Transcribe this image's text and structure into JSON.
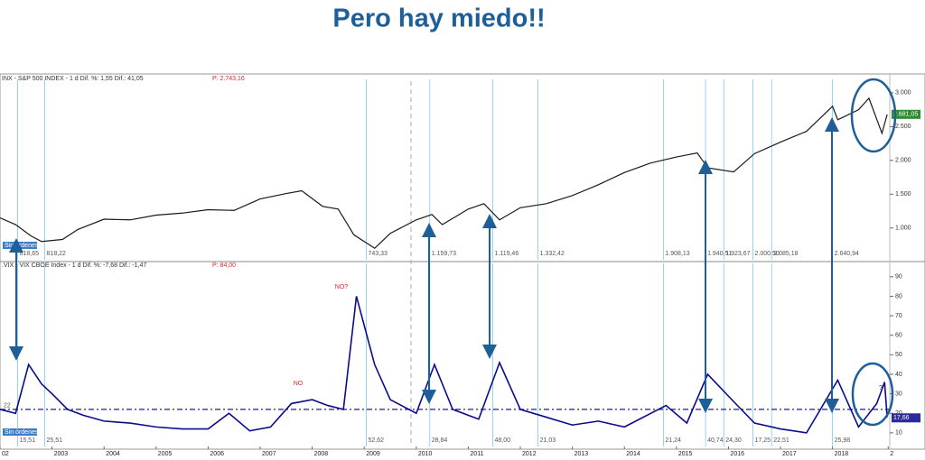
{
  "title": "Pero hay miedo!!",
  "chart_data": [
    {
      "type": "line",
      "header": "INX - S&P 500 INDEX - 1 d  Dif. %: 1,55  Dif.: 41,05",
      "price": "P: 2.743,16",
      "order_status": "Sin órdenes",
      "x": [
        2002.0,
        2002.3,
        2002.6,
        2002.8,
        2003.2,
        2003.5,
        2004.0,
        2004.5,
        2005.0,
        2005.5,
        2006.0,
        2006.5,
        2007.0,
        2007.5,
        2007.8,
        2008.2,
        2008.5,
        2008.8,
        2009.2,
        2009.5,
        2010.0,
        2010.3,
        2010.5,
        2011.0,
        2011.3,
        2011.6,
        2012.0,
        2012.5,
        2013.0,
        2013.5,
        2014.0,
        2014.5,
        2015.0,
        2015.4,
        2015.6,
        2016.1,
        2016.5,
        2017.0,
        2017.5,
        2018.0,
        2018.1,
        2018.5,
        2018.7,
        2018.95,
        2019.05
      ],
      "series": [
        {
          "name": "S&P 500",
          "color": "#1a1a1a",
          "values": [
            1150,
            1050,
            880,
            800,
            830,
            980,
            1130,
            1120,
            1190,
            1220,
            1270,
            1260,
            1430,
            1510,
            1550,
            1320,
            1280,
            900,
            700,
            920,
            1120,
            1200,
            1050,
            1280,
            1360,
            1120,
            1300,
            1360,
            1480,
            1640,
            1820,
            1960,
            2050,
            2110,
            1890,
            1830,
            2100,
            2270,
            2430,
            2800,
            2600,
            2750,
            2920,
            2400,
            2680
          ]
        }
      ],
      "xlim": [
        2002,
        2019.1
      ],
      "ylim": [
        530,
        3145
      ],
      "yticks": [
        {
          "value": 1000,
          "label": "1.000"
        },
        {
          "value": 1500,
          "label": "1.500"
        },
        {
          "value": 2000,
          "label": "2.000"
        },
        {
          "value": 2500,
          "label": "2.500"
        },
        {
          "value": 3000,
          "label": "3.000"
        }
      ],
      "current": {
        "value": 2681.05,
        "label": "2.681,05"
      },
      "annotations": [
        {
          "x": 2002.34,
          "label": "818,65"
        },
        {
          "x": 2002.86,
          "label": "818,22"
        },
        {
          "x": 2009.04,
          "label": "743,33"
        },
        {
          "x": 2010.26,
          "label": "1.159,73"
        },
        {
          "x": 2011.47,
          "label": "1.119,46"
        },
        {
          "x": 2012.34,
          "label": "1.332,42"
        },
        {
          "x": 2014.75,
          "label": "1.908,13"
        },
        {
          "x": 2015.56,
          "label": "1.940,51"
        },
        {
          "x": 2015.91,
          "label": "1.923,67"
        },
        {
          "x": 2016.47,
          "label": "2.000,50"
        },
        {
          "x": 2016.83,
          "label": "2.085,18"
        },
        {
          "x": 2018.0,
          "label": "2.640,94"
        }
      ]
    },
    {
      "type": "line",
      "header": ".VIX - VIX CBOE Index - 1 d  Dif. %: -7,68  Dif.: -1,47",
      "price": "P: 84,00",
      "order_status": "Sin órdenes",
      "x": [
        2002.0,
        2002.3,
        2002.55,
        2002.8,
        2003.0,
        2003.3,
        2003.6,
        2004.0,
        2004.5,
        2005.0,
        2005.5,
        2006.0,
        2006.4,
        2006.8,
        2007.2,
        2007.6,
        2008.0,
        2008.3,
        2008.6,
        2008.85,
        2009.2,
        2009.5,
        2010.0,
        2010.35,
        2010.7,
        2011.2,
        2011.6,
        2012.0,
        2012.5,
        2013.0,
        2013.5,
        2014.0,
        2014.8,
        2015.2,
        2015.6,
        2016.1,
        2016.5,
        2017.0,
        2017.5,
        2018.1,
        2018.5,
        2018.85,
        2019.0,
        2019.05
      ],
      "series": [
        {
          "name": "VIX",
          "color": "#0b0b8c",
          "values": [
            22,
            20,
            45,
            35,
            30,
            22,
            19,
            16,
            15,
            13,
            12,
            12,
            20,
            11,
            13,
            25,
            27,
            24,
            22,
            80,
            45,
            27,
            20,
            45,
            22,
            17,
            46,
            22,
            18,
            14,
            16,
            13,
            24,
            15,
            40,
            26,
            15,
            12,
            10,
            37,
            13,
            25,
            36,
            18
          ]
        }
      ],
      "xlim": [
        2002,
        2019.1
      ],
      "ylim": [
        3,
        95
      ],
      "yticks": [
        10,
        20,
        30,
        40,
        50,
        60,
        70,
        80,
        90
      ],
      "xticks": [
        {
          "value": 2002,
          "label": "02"
        },
        2003,
        2004,
        2005,
        2006,
        2007,
        2008,
        2009,
        2010,
        2011,
        2012,
        2013,
        2014,
        2015,
        2016,
        2017,
        2018,
        {
          "value": 2019.07,
          "label": "2"
        }
      ],
      "hline": 22,
      "current": {
        "value": 17.66,
        "label": "17,66"
      },
      "notes": [
        "NO?",
        "NO",
        "?"
      ],
      "annotations": [
        {
          "x": 2002.34,
          "label": "15,51"
        },
        {
          "x": 2002.86,
          "label": "25,51"
        },
        {
          "x": 2009.04,
          "label": "52,62"
        },
        {
          "x": 2010.26,
          "label": "28,84"
        },
        {
          "x": 2011.47,
          "label": "48,00"
        },
        {
          "x": 2012.34,
          "label": "21,03"
        },
        {
          "x": 2014.75,
          "label": "21,24"
        },
        {
          "x": 2015.56,
          "label": "40,74"
        },
        {
          "x": 2015.91,
          "label": "24,30"
        },
        {
          "x": 2016.47,
          "label": "17,25"
        },
        {
          "x": 2016.83,
          "label": "22,51"
        },
        {
          "x": 2018.0,
          "label": "25,98"
        }
      ]
    }
  ]
}
